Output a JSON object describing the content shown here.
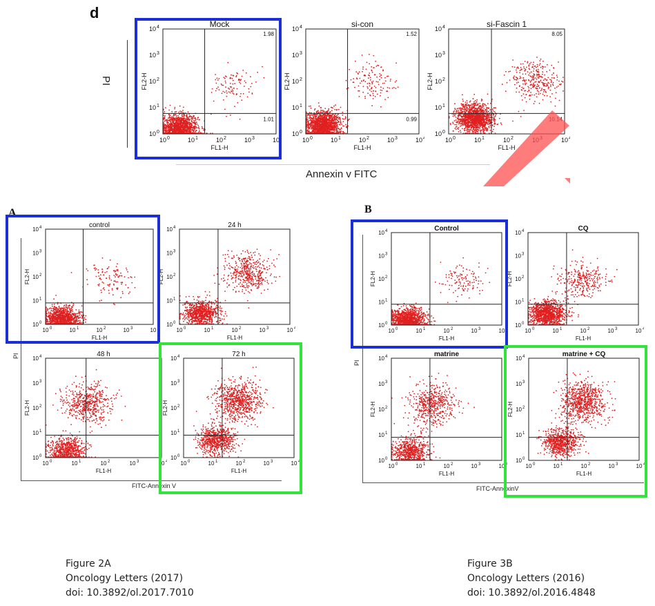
{
  "colors": {
    "dots": "#e02020",
    "highlight_blue": "#1a2fd6",
    "highlight_green": "#33e23a",
    "watermark": "#ff5050"
  },
  "panel_d": {
    "letter": "d",
    "y_title": "PI",
    "x_title": "Annexin v FITC",
    "plots": [
      {
        "title": "Mock",
        "q2": "1.98",
        "q4": "1.01",
        "xlabel": "FL1-H",
        "ylabel": "FL2-H",
        "ticks": [
          "10",
          "1",
          "2",
          "3",
          "10"
        ],
        "highlight": "blue"
      },
      {
        "title": "si-con",
        "q2": "1.52",
        "q4": "0.99",
        "xlabel": "FL1-H",
        "ylabel": "FL2-H",
        "ticks": [
          "10",
          "1",
          "2",
          "3",
          "4"
        ]
      },
      {
        "title": "si-Fascin 1",
        "q2": "8.05",
        "q4": "10.14",
        "xlabel": "FL1-H",
        "ylabel": "FL2-H",
        "ticks": [
          "10",
          "1",
          "2",
          "3",
          "4"
        ]
      }
    ]
  },
  "panel_a": {
    "letter": "A",
    "y_title": "PI",
    "x_title": "FITC-Annexin V",
    "plots": [
      {
        "title": "control",
        "xlabel": "FL1-H",
        "ylabel": "FL2-H",
        "ticks": [
          "10",
          "1",
          "2",
          "3",
          "4"
        ],
        "highlight": "blue"
      },
      {
        "title": "24 h",
        "xlabel": "FL1-H",
        "ylabel": "FL2-H",
        "ticks": [
          "10",
          "1",
          "2",
          "3",
          "4"
        ]
      },
      {
        "title": "48 h",
        "xlabel": "FL1-H",
        "ylabel": "FL2-H",
        "ticks": [
          "10",
          "1",
          "2",
          "3",
          "4"
        ]
      },
      {
        "title": "72 h",
        "xlabel": "FL1-H",
        "ylabel": "FL2-H",
        "ticks": [
          "10",
          "1",
          "2",
          "3",
          "4"
        ],
        "highlight": "green"
      }
    ]
  },
  "panel_b": {
    "letter": "B",
    "y_title": "PI",
    "x_title": "FITC-AnnexinV",
    "plots": [
      {
        "title": "Control",
        "xlabel": "FL1-H",
        "ylabel": "FL2-H",
        "ticks": [
          "10",
          "1",
          "2",
          "3",
          "4"
        ],
        "highlight": "blue"
      },
      {
        "title": "CQ",
        "xlabel": "FL1-H",
        "ylabel": "FL2-H",
        "ticks": [
          "10",
          "1",
          "2",
          "3",
          "4"
        ]
      },
      {
        "title": "matrine",
        "xlabel": "FL1-H",
        "ylabel": "FL2-H",
        "ticks": [
          "10",
          "1",
          "2",
          "3",
          "4"
        ]
      },
      {
        "title": "matrine + CQ",
        "xlabel": "FL1-H",
        "ylabel": "FL2-H",
        "ticks": [
          "10",
          "1",
          "2",
          "3",
          "4"
        ],
        "highlight": "green"
      }
    ]
  },
  "caption_left": {
    "line1": "Figure 2A",
    "line2": "Oncology Letters (2017)",
    "line3": "doi: 10.3892/ol.2017.7010"
  },
  "caption_right": {
    "line1": "Figure 3B",
    "line2": "Oncology Letters (2016)",
    "line3": "doi: 10.3892/ol.2016.4848"
  },
  "chart_data": [
    {
      "type": "scatter",
      "title": "Mock",
      "xlabel": "FL1-H",
      "ylabel": "FL2-H",
      "xlim": [
        1,
        10000
      ],
      "ylim": [
        1,
        10000
      ],
      "x_scale": "log",
      "y_scale": "log",
      "grid": false,
      "quadrant_values": {
        "upper_right": 1.98,
        "lower_right": 1.01
      },
      "populations": [
        {
          "name": "",
          "x": 4,
          "y": 1.5,
          "share": 0.92
        },
        {
          "name": "",
          "x": 300,
          "y": 60,
          "share": 0.06
        }
      ]
    },
    {
      "type": "scatter",
      "title": "si-con",
      "xlabel": "FL1-H",
      "ylabel": "FL2-H",
      "xlim": [
        1,
        10000
      ],
      "ylim": [
        1,
        10000
      ],
      "x_scale": "log",
      "y_scale": "log",
      "grid": false,
      "quadrant_values": {
        "upper_right": 1.52,
        "lower_right": 0.99
      },
      "populations": [
        {
          "name": "",
          "x": 4,
          "y": 2,
          "share": 0.9
        },
        {
          "name": "",
          "x": 200,
          "y": 100,
          "share": 0.08
        }
      ]
    },
    {
      "type": "scatter",
      "title": "si-Fascin 1",
      "xlabel": "FL1-H",
      "ylabel": "FL2-H",
      "xlim": [
        1,
        10000
      ],
      "ylim": [
        1,
        10000
      ],
      "x_scale": "log",
      "y_scale": "log",
      "grid": false,
      "quadrant_values": {
        "upper_right": 8.05,
        "lower_right": 10.14
      },
      "populations": [
        {
          "name": "",
          "x": 8,
          "y": 4,
          "share": 0.8
        },
        {
          "name": "",
          "x": 1000,
          "y": 100,
          "share": 0.18
        }
      ]
    },
    {
      "type": "scatter",
      "title": "control",
      "xlabel": "FL1-H",
      "ylabel": "FL2-H",
      "xlim": [
        1,
        10000
      ],
      "ylim": [
        1,
        10000
      ],
      "x_scale": "log",
      "y_scale": "log",
      "grid": false,
      "populations": [
        {
          "name": "",
          "x": 4,
          "y": 1.5,
          "share": 0.9
        },
        {
          "name": "",
          "x": 300,
          "y": 80,
          "share": 0.08
        }
      ]
    },
    {
      "type": "scatter",
      "title": "24 h",
      "xlabel": "FL1-H",
      "ylabel": "FL2-H",
      "xlim": [
        1,
        10000
      ],
      "ylim": [
        1,
        10000
      ],
      "x_scale": "log",
      "y_scale": "log",
      "grid": false,
      "populations": [
        {
          "name": "",
          "x": 6,
          "y": 3,
          "share": 0.55
        },
        {
          "name": "",
          "x": 300,
          "y": 150,
          "share": 0.3
        }
      ]
    },
    {
      "type": "scatter",
      "title": "48 h",
      "xlabel": "FL1-H",
      "ylabel": "FL2-H",
      "xlim": [
        1,
        10000
      ],
      "ylim": [
        1,
        10000
      ],
      "x_scale": "log",
      "y_scale": "log",
      "grid": false,
      "populations": [
        {
          "name": "",
          "x": 5,
          "y": 2,
          "share": 0.45
        },
        {
          "name": "",
          "x": 30,
          "y": 150,
          "share": 0.35
        }
      ]
    },
    {
      "type": "scatter",
      "title": "72 h",
      "xlabel": "FL1-H",
      "ylabel": "FL2-H",
      "xlim": [
        1,
        10000
      ],
      "ylim": [
        1,
        10000
      ],
      "x_scale": "log",
      "y_scale": "log",
      "grid": false,
      "populations": [
        {
          "name": "",
          "x": 15,
          "y": 5,
          "share": 0.45
        },
        {
          "name": "",
          "x": 100,
          "y": 200,
          "share": 0.5
        }
      ]
    },
    {
      "type": "scatter",
      "title": "Control",
      "xlabel": "FL1-H",
      "ylabel": "FL2-H",
      "xlim": [
        1,
        10000
      ],
      "ylim": [
        1,
        10000
      ],
      "x_scale": "log",
      "y_scale": "log",
      "grid": false,
      "populations": [
        {
          "name": "",
          "x": 4,
          "y": 1.5,
          "share": 0.9
        },
        {
          "name": "",
          "x": 300,
          "y": 80,
          "share": 0.08
        }
      ]
    },
    {
      "type": "scatter",
      "title": "CQ",
      "xlabel": "FL1-H",
      "ylabel": "FL2-H",
      "xlim": [
        1,
        10000
      ],
      "ylim": [
        1,
        10000
      ],
      "x_scale": "log",
      "y_scale": "log",
      "grid": false,
      "populations": [
        {
          "name": "",
          "x": 5,
          "y": 3,
          "share": 0.75
        },
        {
          "name": "",
          "x": 100,
          "y": 80,
          "share": 0.2
        }
      ]
    },
    {
      "type": "scatter",
      "title": "matrine",
      "xlabel": "FL1-H",
      "ylabel": "FL2-H",
      "xlim": [
        1,
        10000
      ],
      "ylim": [
        1,
        10000
      ],
      "x_scale": "log",
      "y_scale": "log",
      "grid": false,
      "populations": [
        {
          "name": "",
          "x": 5,
          "y": 2,
          "share": 0.45
        },
        {
          "name": "",
          "x": 30,
          "y": 150,
          "share": 0.35
        }
      ]
    },
    {
      "type": "scatter",
      "title": "matrine + CQ",
      "xlabel": "FL1-H",
      "ylabel": "FL2-H",
      "xlim": [
        1,
        10000
      ],
      "ylim": [
        1,
        10000
      ],
      "x_scale": "log",
      "y_scale": "log",
      "grid": false,
      "populations": [
        {
          "name": "",
          "x": 15,
          "y": 5,
          "share": 0.45
        },
        {
          "name": "",
          "x": 100,
          "y": 200,
          "share": 0.5
        }
      ]
    }
  ]
}
